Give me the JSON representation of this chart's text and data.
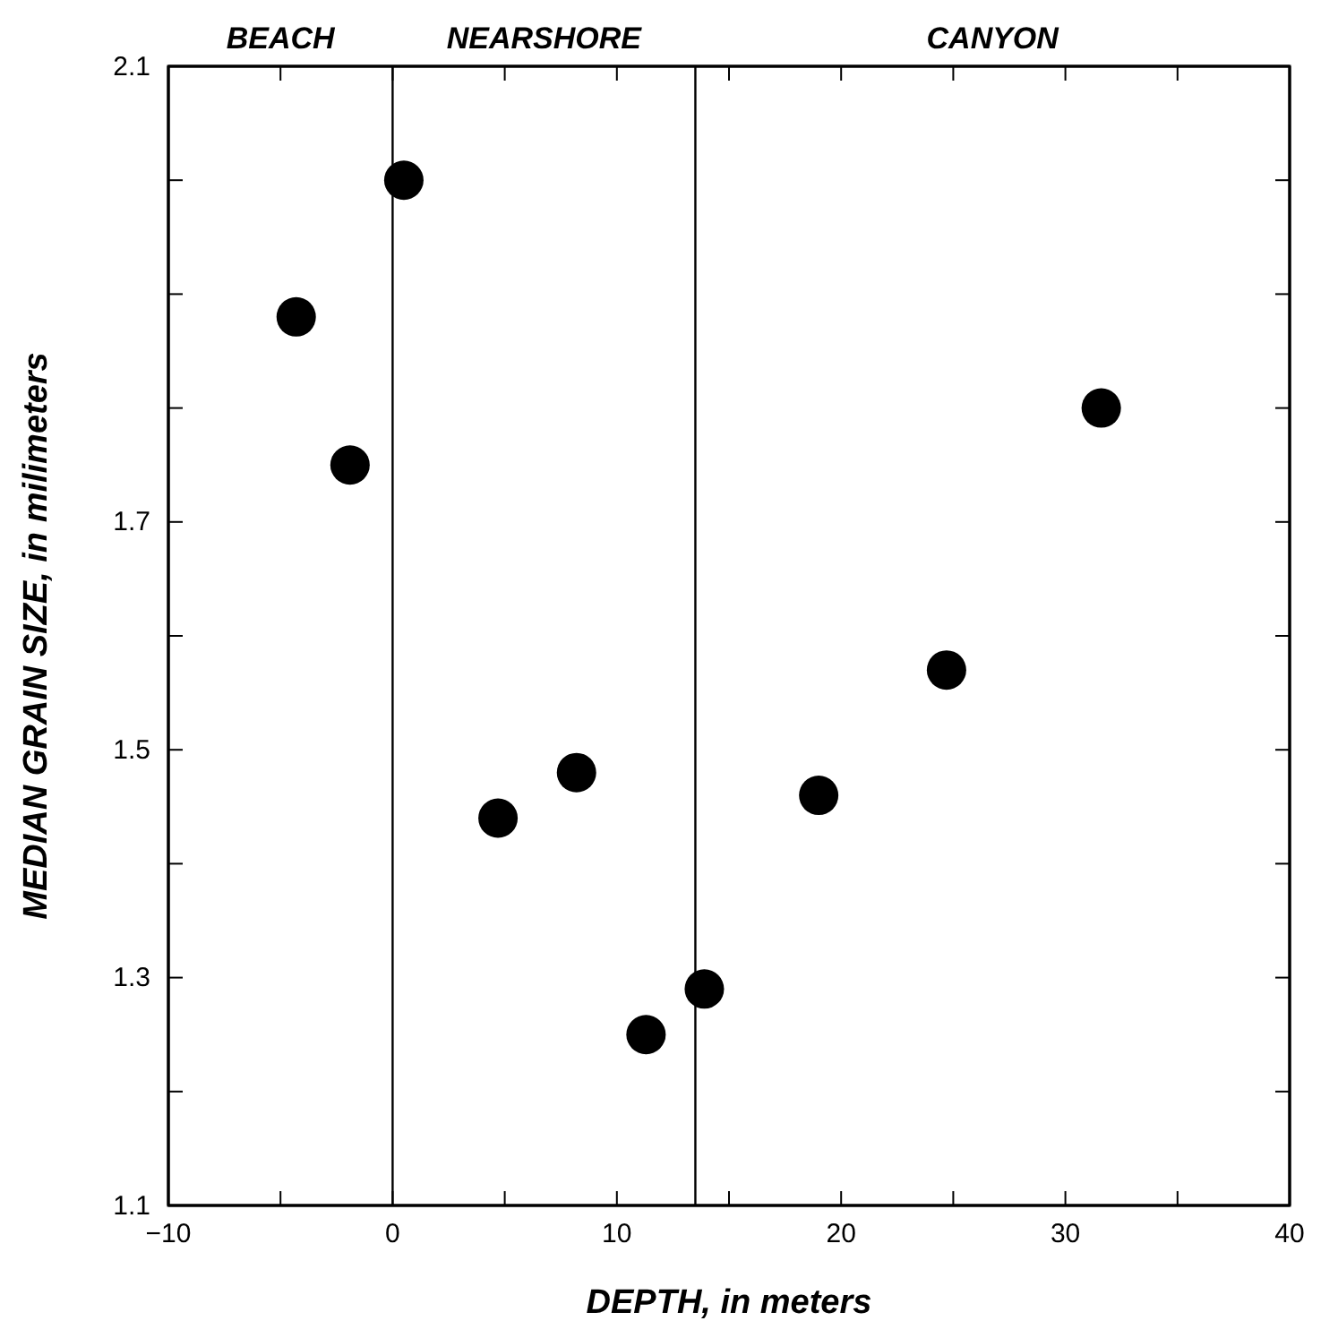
{
  "chart_data": {
    "type": "scatter",
    "xlabel": "DEPTH, in meters",
    "ylabel": "MEDIAN GRAIN SIZE, in milimeters",
    "x": [
      -4.3,
      -1.9,
      0.5,
      4.7,
      8.2,
      11.3,
      13.9,
      19.0,
      24.7,
      31.6
    ],
    "values": [
      1.88,
      1.75,
      2.0,
      1.44,
      1.48,
      1.25,
      1.29,
      1.46,
      1.57,
      1.8
    ],
    "color": "#000000",
    "marker": "circle",
    "xlim": [
      -10,
      40
    ],
    "xticks": [
      -10,
      {
        "value": -5,
        "label": null
      },
      0,
      {
        "value": 5,
        "label": null
      },
      10,
      {
        "value": 15,
        "label": null
      },
      20,
      {
        "value": 25,
        "label": null
      },
      30,
      {
        "value": 35,
        "label": null
      },
      40
    ],
    "ylim": [
      1.1,
      2.1
    ],
    "yticks": [
      1.1,
      {
        "value": 1.2,
        "label": null
      },
      1.3,
      {
        "value": 1.4,
        "label": null
      },
      1.5,
      {
        "value": 1.6,
        "label": null
      },
      1.7,
      {
        "value": 1.8,
        "label": null
      },
      {
        "value": 1.9,
        "label": null
      },
      {
        "value": 2.0,
        "label": null
      },
      2.1
    ],
    "ref_lines": [
      {
        "axis": "x",
        "value": 0,
        "color": "#000000"
      },
      {
        "axis": "x",
        "value": 13.5,
        "color": "#000000"
      }
    ],
    "annotations": [
      "BEACH",
      "NEARSHORE",
      "CANYON"
    ],
    "grid": false
  }
}
